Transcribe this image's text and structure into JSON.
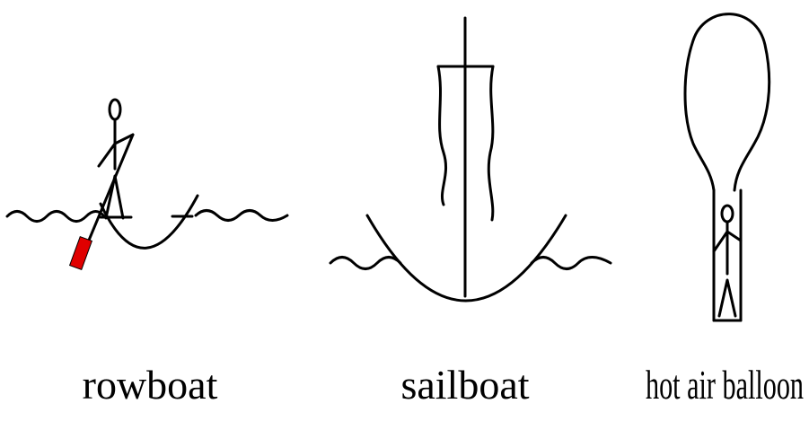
{
  "panels": [
    {
      "id": "rowboat",
      "label": "rowboat"
    },
    {
      "id": "sailboat",
      "label": "sailboat"
    },
    {
      "id": "hot-air-balloon",
      "label": "hot air balloon"
    }
  ],
  "colors": {
    "stroke": "#000000",
    "oar_blade": "#e00000",
    "background": "#ffffff"
  }
}
